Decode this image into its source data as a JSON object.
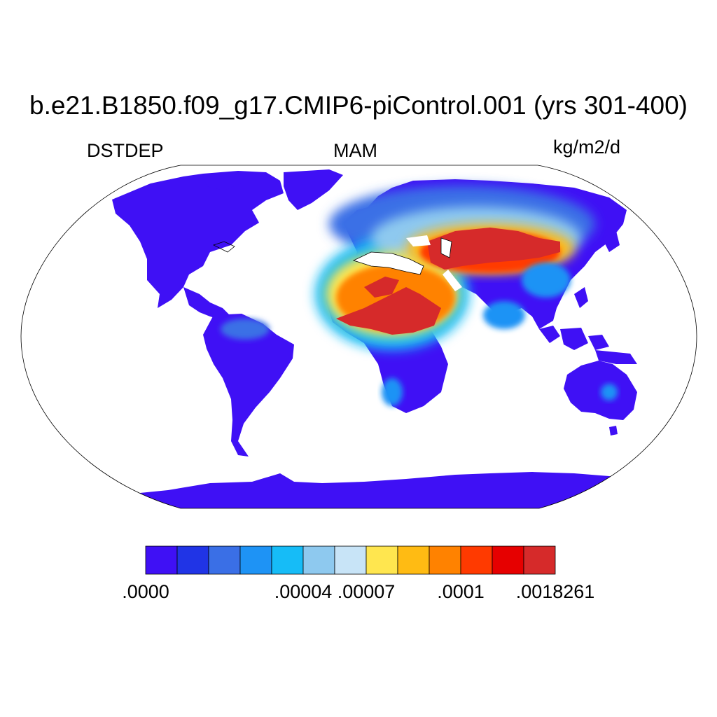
{
  "title": "b.e21.B1850.f09_g17.CMIP6-piControl.001 (yrs 301-400)",
  "left_label": "DSTDEP",
  "center_label": "MAM",
  "right_label": "kg/m2/d",
  "colorbar": {
    "colors": [
      "#3f10f5",
      "#2034e6",
      "#3a6fe6",
      "#1e93f5",
      "#16bcf7",
      "#8ec9ef",
      "#c8e4f7",
      "#ffe64f",
      "#ffbb13",
      "#ff8200",
      "#ff3a00",
      "#e60000",
      "#d62a2a"
    ],
    "tick_labels": [
      {
        "label": ".0000",
        "boundary": 0
      },
      {
        "label": ".00004",
        "boundary": 5
      },
      {
        "label": ".00007",
        "boundary": 7
      },
      {
        "label": ".0001",
        "boundary": 10
      },
      {
        "label": ".0018261",
        "boundary": 13
      }
    ]
  }
}
